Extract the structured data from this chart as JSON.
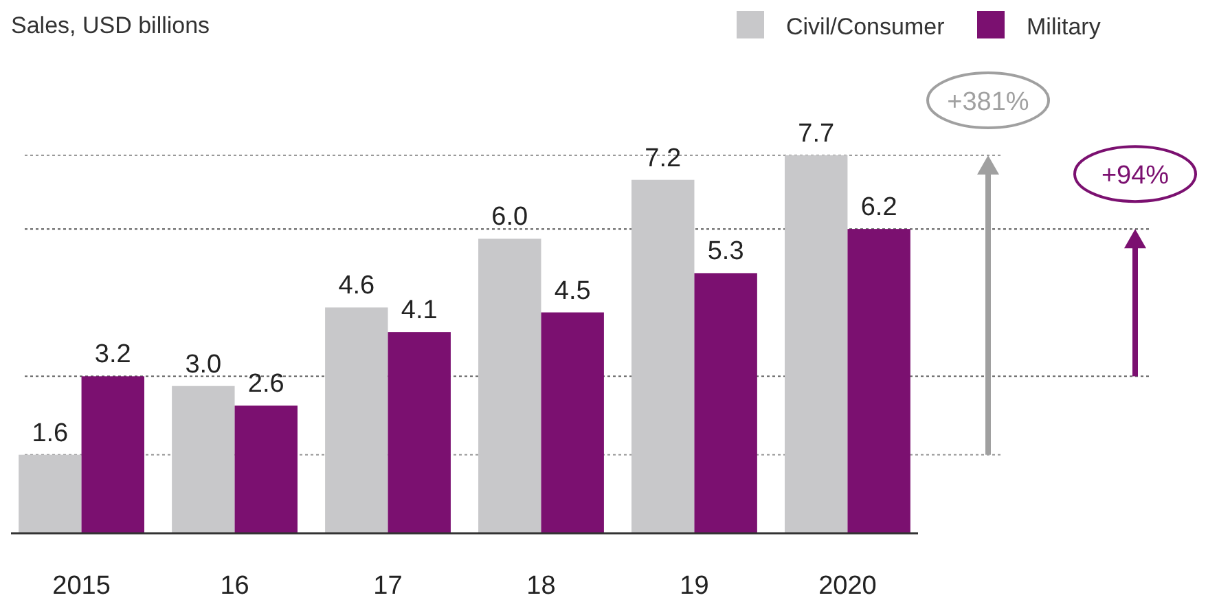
{
  "chart_data": {
    "type": "bar",
    "title": "Sales, USD billions",
    "categories": [
      "2015",
      "16",
      "17",
      "18",
      "19",
      "2020"
    ],
    "series": [
      {
        "name": "Civil/Consumer",
        "color": "#c8c8ca",
        "values": [
          1.6,
          3.0,
          4.6,
          6.0,
          7.2,
          7.7
        ],
        "value_labels": [
          "1.6",
          "3.0",
          "4.6",
          "6.0",
          "7.2",
          "7.7"
        ]
      },
      {
        "name": "Military",
        "color": "#7b1070",
        "values": [
          3.2,
          2.6,
          4.1,
          4.5,
          5.3,
          6.2
        ],
        "value_labels": [
          "3.2",
          "2.6",
          "4.1",
          "4.5",
          "5.3",
          "6.2"
        ]
      }
    ],
    "legend": "top right",
    "grid": false,
    "annotations": [
      "+381%",
      "+94%"
    ],
    "ref_lines": [
      {
        "axis": "y",
        "value": 1.6,
        "color": "#9a9a9a",
        "line_style": "dotted"
      },
      {
        "axis": "y",
        "value": 7.7,
        "color": "#9a9a9a",
        "line_style": "dotted"
      },
      {
        "axis": "y",
        "value": 3.2,
        "color": "#555555",
        "line_style": "dotted"
      },
      {
        "axis": "y",
        "value": 6.2,
        "color": "#555555",
        "line_style": "dotted"
      }
    ]
  }
}
